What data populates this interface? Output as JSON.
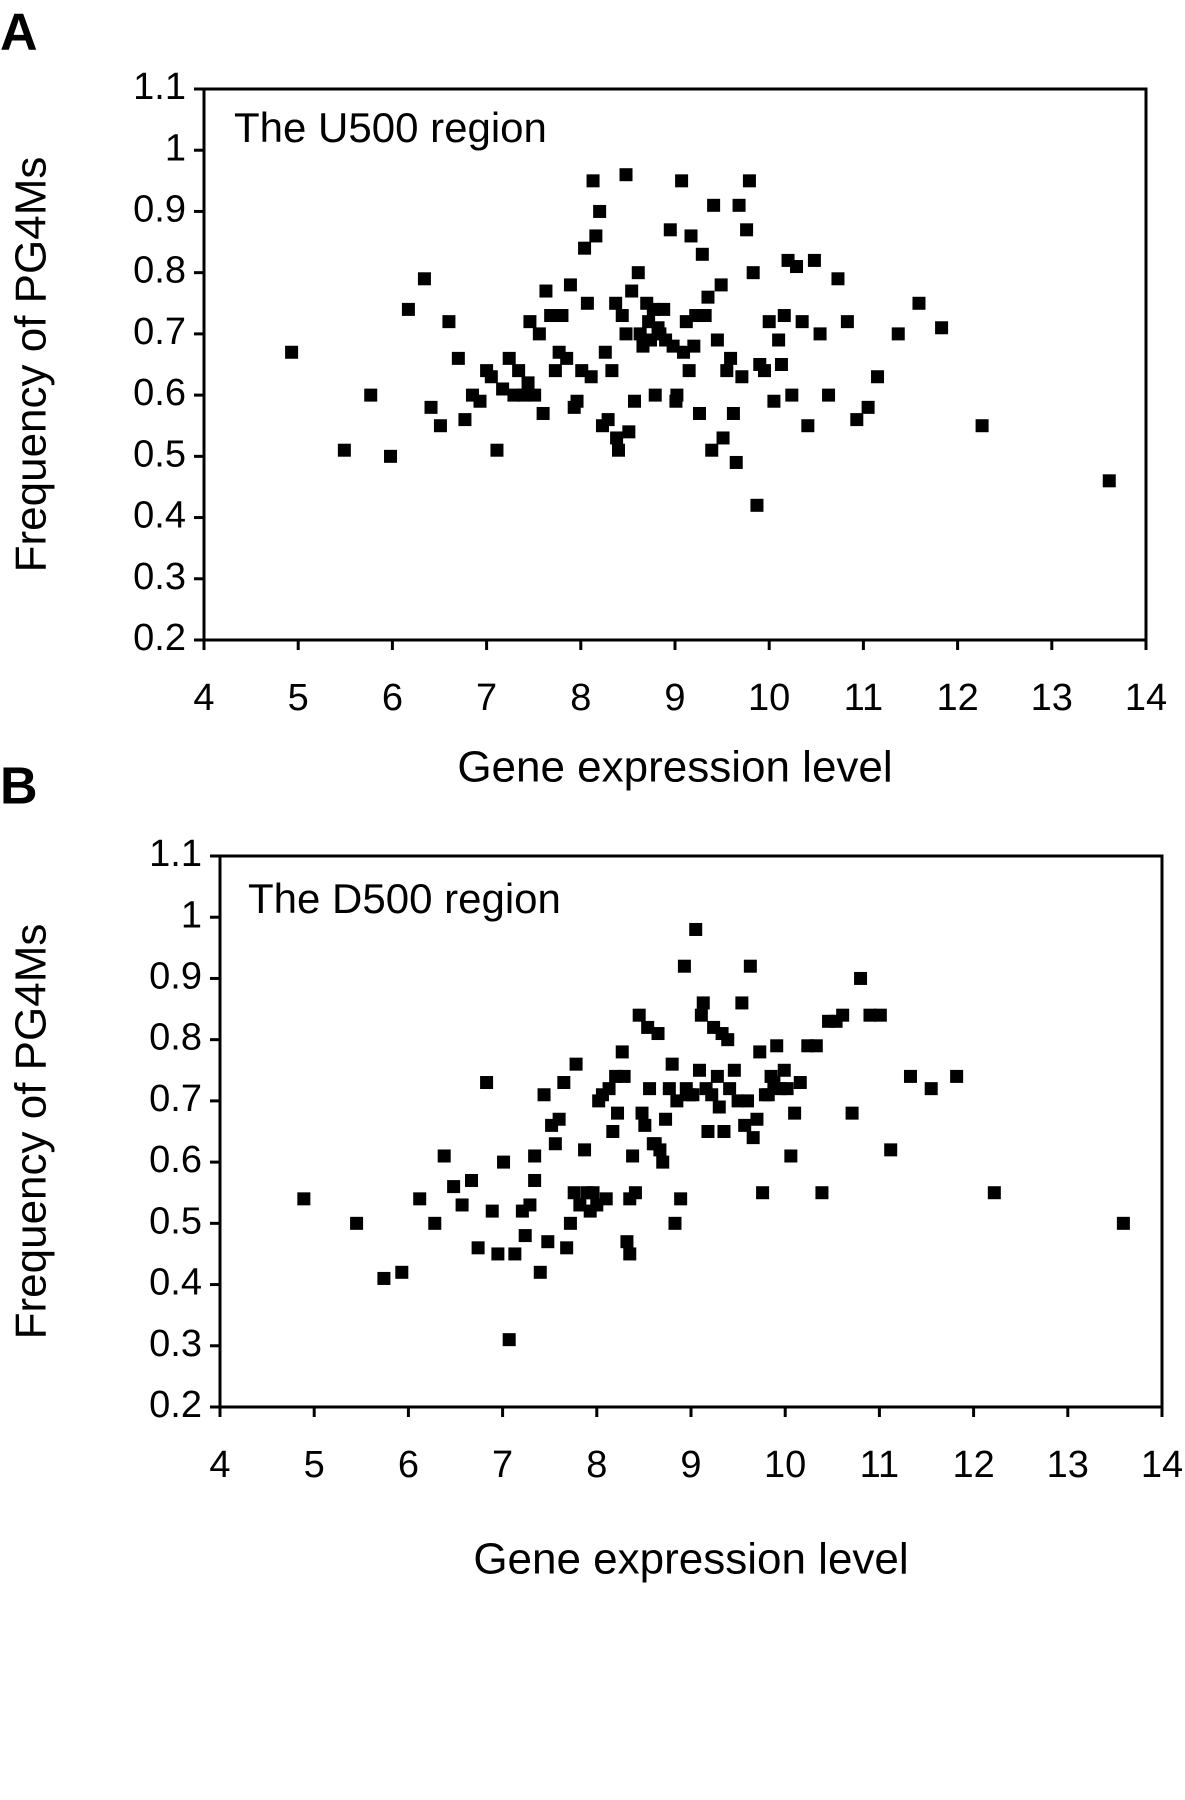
{
  "chart_data": [
    {
      "type": "scatter",
      "panel": "A",
      "annotation": "The U500 region",
      "xlabel": "Gene expression level",
      "ylabel": "Frequency of PG4Ms",
      "color": "#000000",
      "xlim": [
        4,
        14
      ],
      "ylim": [
        0.2,
        1.1
      ],
      "xticks": [
        4,
        5,
        6,
        7,
        8,
        9,
        10,
        11,
        12,
        13,
        14
      ],
      "yticks": [
        0.2,
        0.3,
        0.4,
        0.5,
        0.6,
        0.7,
        0.8,
        0.9,
        1,
        1.1
      ],
      "x": [
        4.93,
        5.49,
        5.77,
        5.98,
        6.17,
        6.34,
        6.41,
        6.51,
        6.6,
        6.7,
        6.77,
        6.85,
        6.93,
        7.0,
        7.05,
        7.11,
        7.17,
        7.24,
        7.29,
        7.34,
        7.39,
        7.44,
        7.46,
        7.51,
        7.56,
        7.6,
        7.63,
        7.68,
        7.73,
        7.77,
        7.8,
        7.85,
        7.89,
        7.93,
        7.96,
        8.01,
        8.04,
        8.07,
        8.11,
        8.13,
        8.16,
        8.2,
        8.23,
        8.26,
        8.29,
        8.33,
        8.37,
        8.38,
        8.4,
        8.44,
        8.48,
        8.48,
        8.51,
        8.54,
        8.57,
        8.61,
        8.63,
        8.66,
        8.7,
        8.72,
        8.74,
        8.77,
        8.79,
        8.82,
        8.84,
        8.88,
        8.9,
        8.95,
        8.98,
        9.01,
        9.02,
        9.07,
        9.09,
        9.12,
        9.15,
        9.17,
        9.2,
        9.22,
        9.26,
        9.29,
        9.32,
        9.35,
        9.39,
        9.41,
        9.45,
        9.49,
        9.51,
        9.55,
        9.59,
        9.62,
        9.65,
        9.68,
        9.71,
        9.76,
        9.79,
        9.83,
        9.87,
        9.9,
        9.95,
        10.0,
        10.05,
        10.1,
        10.13,
        10.16,
        10.2,
        10.24,
        10.29,
        10.35,
        10.41,
        10.48,
        10.54,
        10.63,
        10.73,
        10.83,
        10.93,
        11.05,
        11.15,
        11.37,
        11.59,
        11.83,
        12.26,
        13.61
      ],
      "values": [
        0.67,
        0.51,
        0.6,
        0.5,
        0.74,
        0.79,
        0.58,
        0.55,
        0.72,
        0.66,
        0.56,
        0.6,
        0.59,
        0.64,
        0.63,
        0.51,
        0.61,
        0.66,
        0.6,
        0.64,
        0.6,
        0.62,
        0.72,
        0.6,
        0.7,
        0.57,
        0.77,
        0.73,
        0.64,
        0.67,
        0.73,
        0.66,
        0.78,
        0.58,
        0.59,
        0.64,
        0.84,
        0.75,
        0.63,
        0.95,
        0.86,
        0.9,
        0.55,
        0.67,
        0.56,
        0.64,
        0.75,
        0.53,
        0.51,
        0.73,
        0.96,
        0.7,
        0.54,
        0.77,
        0.59,
        0.8,
        0.7,
        0.68,
        0.75,
        0.72,
        0.69,
        0.74,
        0.6,
        0.71,
        0.7,
        0.74,
        0.69,
        0.87,
        0.68,
        0.59,
        0.6,
        0.95,
        0.67,
        0.72,
        0.64,
        0.86,
        0.68,
        0.73,
        0.57,
        0.83,
        0.73,
        0.76,
        0.51,
        0.91,
        0.69,
        0.78,
        0.53,
        0.64,
        0.66,
        0.57,
        0.49,
        0.91,
        0.63,
        0.87,
        0.95,
        0.8,
        0.42,
        0.65,
        0.64,
        0.72,
        0.59,
        0.69,
        0.65,
        0.73,
        0.82,
        0.6,
        0.81,
        0.72,
        0.55,
        0.82,
        0.7,
        0.6,
        0.79,
        0.72,
        0.56,
        0.58,
        0.63,
        0.7,
        0.75,
        0.71,
        0.55,
        0.46
      ]
    },
    {
      "type": "scatter",
      "panel": "B",
      "annotation": "The D500 region",
      "xlabel": "Gene expression level",
      "ylabel": "Frequency of PG4Ms",
      "color": "#000000",
      "xlim": [
        4,
        14
      ],
      "ylim": [
        0.2,
        1.1
      ],
      "xticks": [
        4,
        5,
        6,
        7,
        8,
        9,
        10,
        11,
        12,
        13,
        14
      ],
      "yticks": [
        0.2,
        0.3,
        0.4,
        0.5,
        0.6,
        0.7,
        0.8,
        0.9,
        1,
        1.1
      ],
      "x": [
        4.89,
        5.45,
        5.74,
        5.93,
        6.12,
        6.28,
        6.38,
        6.48,
        6.57,
        6.67,
        6.74,
        6.83,
        6.89,
        6.95,
        7.01,
        7.07,
        7.13,
        7.21,
        7.24,
        7.29,
        7.34,
        7.34,
        7.4,
        7.44,
        7.48,
        7.52,
        7.56,
        7.6,
        7.65,
        7.68,
        7.72,
        7.76,
        7.78,
        7.82,
        7.87,
        7.9,
        7.93,
        7.96,
        8.0,
        8.02,
        8.06,
        8.1,
        8.13,
        8.17,
        8.2,
        8.22,
        8.27,
        8.29,
        8.32,
        8.35,
        8.35,
        8.38,
        8.41,
        8.45,
        8.48,
        8.51,
        8.54,
        8.56,
        8.6,
        8.62,
        8.65,
        8.67,
        8.7,
        8.73,
        8.77,
        8.8,
        8.83,
        8.85,
        8.89,
        8.93,
        8.95,
        8.98,
        9.02,
        9.05,
        9.09,
        9.11,
        9.13,
        9.16,
        9.18,
        9.22,
        9.24,
        9.28,
        9.3,
        9.33,
        9.35,
        9.39,
        9.41,
        9.46,
        9.5,
        9.54,
        9.57,
        9.6,
        9.63,
        9.66,
        9.7,
        9.73,
        9.76,
        9.79,
        9.82,
        9.85,
        9.88,
        9.91,
        9.95,
        9.99,
        10.02,
        10.06,
        10.1,
        10.16,
        10.24,
        10.33,
        10.39,
        10.46,
        10.54,
        10.61,
        10.71,
        10.8,
        10.9,
        11.01,
        11.12,
        11.33,
        11.55,
        11.82,
        12.22,
        13.59
      ],
      "values": [
        0.54,
        0.5,
        0.41,
        0.42,
        0.54,
        0.5,
        0.61,
        0.56,
        0.53,
        0.57,
        0.46,
        0.73,
        0.52,
        0.45,
        0.6,
        0.31,
        0.45,
        0.52,
        0.48,
        0.53,
        0.57,
        0.61,
        0.42,
        0.71,
        0.47,
        0.66,
        0.63,
        0.67,
        0.73,
        0.46,
        0.5,
        0.55,
        0.76,
        0.53,
        0.62,
        0.55,
        0.52,
        0.55,
        0.53,
        0.7,
        0.71,
        0.54,
        0.72,
        0.65,
        0.74,
        0.68,
        0.78,
        0.74,
        0.47,
        0.45,
        0.54,
        0.61,
        0.55,
        0.84,
        0.68,
        0.66,
        0.82,
        0.72,
        0.63,
        0.63,
        0.81,
        0.62,
        0.6,
        0.67,
        0.72,
        0.76,
        0.5,
        0.7,
        0.54,
        0.92,
        0.72,
        0.71,
        0.71,
        0.98,
        0.75,
        0.84,
        0.86,
        0.72,
        0.65,
        0.71,
        0.82,
        0.74,
        0.69,
        0.81,
        0.65,
        0.8,
        0.72,
        0.75,
        0.7,
        0.86,
        0.66,
        0.7,
        0.92,
        0.64,
        0.67,
        0.78,
        0.55,
        0.71,
        0.71,
        0.74,
        0.73,
        0.79,
        0.72,
        0.75,
        0.72,
        0.61,
        0.68,
        0.73,
        0.79,
        0.79,
        0.55,
        0.83,
        0.83,
        0.84,
        0.68,
        0.9,
        0.84,
        0.84,
        0.62,
        0.74,
        0.72,
        0.74,
        0.55,
        0.5
      ]
    }
  ]
}
